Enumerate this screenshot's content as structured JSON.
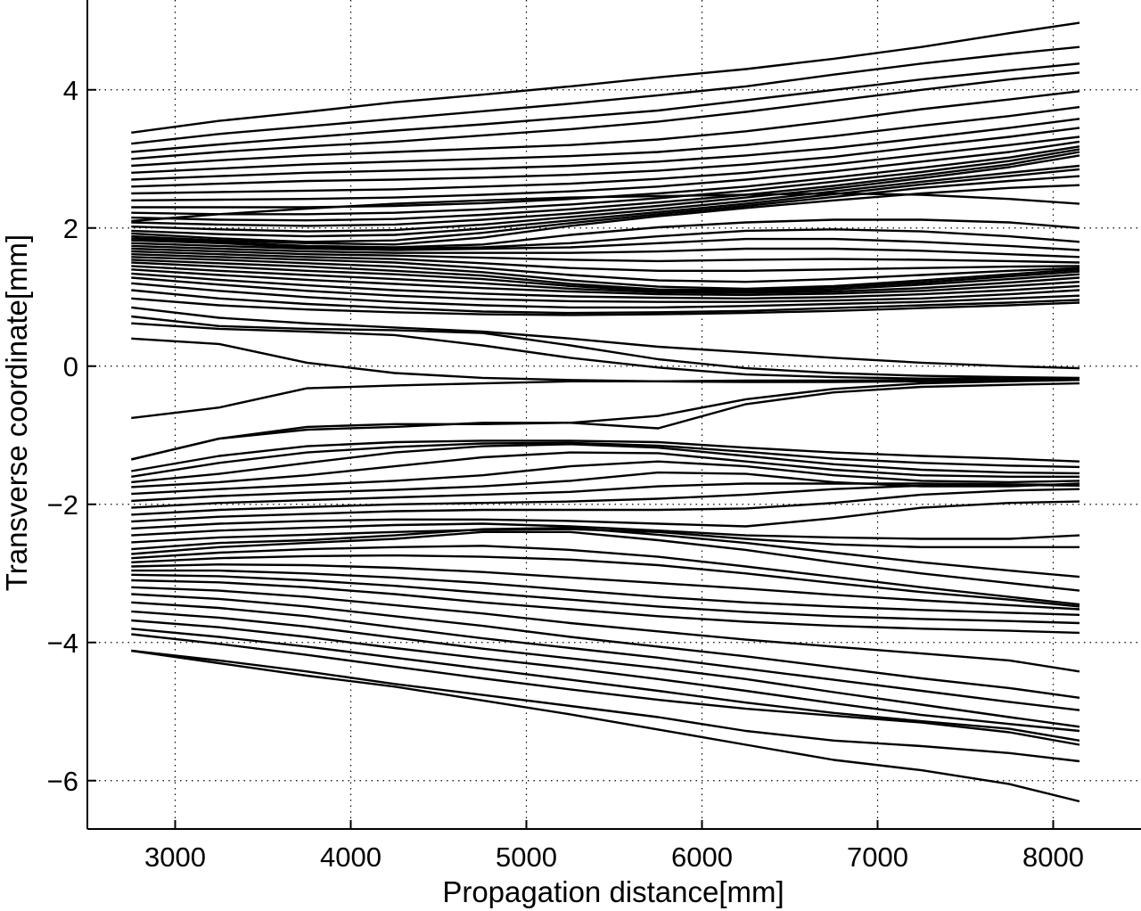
{
  "chart_data": {
    "type": "line",
    "title": "",
    "xlabel": "Propagation distance[mm]",
    "ylabel": "Transverse coordinate[mm]",
    "xlim": [
      2500,
      8500
    ],
    "ylim": [
      -6.7,
      5.3
    ],
    "xticks": [
      3000,
      4000,
      5000,
      6000,
      7000,
      8000
    ],
    "xtick_labels": [
      "3000",
      "4000",
      "5000",
      "6000",
      "7000",
      "8000"
    ],
    "yticks": [
      -6,
      -4,
      -2,
      0,
      2,
      4
    ],
    "ytick_labels": [
      "−6",
      "−4",
      "−2",
      "0",
      "2",
      "4"
    ],
    "grid": "dotted",
    "legend": "none",
    "line_color": "#000000",
    "x": [
      2750,
      3250,
      3750,
      4250,
      4750,
      5250,
      5750,
      6250,
      6750,
      7250,
      7750,
      8150
    ],
    "series": [
      {
        "values": [
          3.38,
          3.55,
          3.68,
          3.82,
          3.93,
          4.05,
          4.18,
          4.3,
          4.45,
          4.62,
          4.82,
          4.97
        ]
      },
      {
        "values": [
          3.22,
          3.36,
          3.47,
          3.58,
          3.69,
          3.8,
          3.92,
          4.05,
          4.22,
          4.38,
          4.52,
          4.62
        ]
      },
      {
        "values": [
          3.1,
          3.21,
          3.31,
          3.41,
          3.5,
          3.6,
          3.7,
          3.85,
          4.0,
          4.15,
          4.28,
          4.38
        ]
      },
      {
        "values": [
          3.0,
          3.1,
          3.18,
          3.25,
          3.34,
          3.43,
          3.54,
          3.68,
          3.84,
          4.0,
          4.15,
          4.25
        ]
      },
      {
        "values": [
          2.9,
          2.98,
          3.05,
          3.1,
          3.15,
          3.2,
          3.28,
          3.4,
          3.55,
          3.72,
          3.86,
          3.98
        ]
      },
      {
        "values": [
          2.8,
          2.86,
          2.92,
          2.96,
          3.0,
          3.04,
          3.1,
          3.2,
          3.33,
          3.48,
          3.62,
          3.75
        ]
      },
      {
        "values": [
          2.7,
          2.75,
          2.8,
          2.83,
          2.86,
          2.9,
          2.96,
          3.05,
          3.16,
          3.3,
          3.45,
          3.58
        ]
      },
      {
        "values": [
          2.6,
          2.64,
          2.68,
          2.7,
          2.73,
          2.77,
          2.83,
          2.92,
          3.03,
          3.18,
          3.32,
          3.45
        ]
      },
      {
        "values": [
          2.5,
          2.52,
          2.54,
          2.56,
          2.6,
          2.64,
          2.71,
          2.8,
          2.92,
          3.06,
          3.2,
          3.32
        ]
      },
      {
        "values": [
          2.4,
          2.41,
          2.42,
          2.44,
          2.48,
          2.53,
          2.6,
          2.7,
          2.82,
          2.96,
          3.1,
          3.25
        ]
      },
      {
        "values": [
          2.3,
          2.3,
          2.3,
          2.32,
          2.36,
          2.42,
          2.5,
          2.6,
          2.73,
          2.87,
          3.02,
          3.18
        ]
      },
      {
        "values": [
          2.22,
          2.2,
          2.2,
          2.22,
          2.27,
          2.34,
          2.43,
          2.54,
          2.67,
          2.81,
          2.97,
          3.14
        ]
      },
      {
        "values": [
          2.15,
          2.12,
          2.11,
          2.13,
          2.19,
          2.27,
          2.37,
          2.48,
          2.61,
          2.76,
          2.92,
          3.1
        ]
      },
      {
        "values": [
          2.08,
          2.05,
          2.03,
          2.05,
          2.12,
          2.21,
          2.32,
          2.44,
          2.57,
          2.72,
          2.88,
          3.05
        ]
      },
      {
        "values": [
          2.02,
          1.98,
          1.95,
          1.97,
          2.05,
          2.16,
          2.27,
          2.39,
          2.53,
          2.67,
          2.8,
          2.9
        ]
      },
      {
        "values": [
          1.96,
          1.91,
          1.88,
          1.9,
          1.99,
          2.11,
          2.23,
          2.35,
          2.49,
          2.63,
          2.75,
          2.85
        ]
      },
      {
        "values": [
          1.92,
          1.85,
          1.8,
          1.82,
          1.93,
          2.07,
          2.2,
          2.32,
          2.45,
          2.58,
          2.68,
          2.75
        ]
      },
      {
        "values": [
          1.88,
          1.82,
          1.78,
          1.76,
          1.86,
          2.03,
          2.17,
          2.29,
          2.4,
          2.5,
          2.58,
          2.62
        ]
      },
      {
        "values": [
          2.1,
          2.2,
          2.28,
          2.35,
          2.4,
          2.44,
          2.46,
          2.48,
          2.5,
          2.48,
          2.42,
          2.35
        ]
      },
      {
        "values": [
          1.85,
          1.8,
          1.74,
          1.72,
          1.76,
          1.9,
          2.01,
          2.08,
          2.12,
          2.12,
          2.08,
          2.0
        ]
      },
      {
        "values": [
          1.82,
          1.78,
          1.72,
          1.7,
          1.72,
          1.78,
          1.88,
          1.96,
          1.98,
          1.95,
          1.88,
          1.8
        ]
      },
      {
        "values": [
          1.78,
          1.74,
          1.7,
          1.68,
          1.7,
          1.72,
          1.78,
          1.84,
          1.84,
          1.8,
          1.74,
          1.68
        ]
      },
      {
        "values": [
          1.74,
          1.7,
          1.66,
          1.64,
          1.64,
          1.64,
          1.66,
          1.7,
          1.7,
          1.67,
          1.62,
          1.58
        ]
      },
      {
        "values": [
          1.7,
          1.66,
          1.62,
          1.6,
          1.57,
          1.54,
          1.52,
          1.54,
          1.55,
          1.54,
          1.52,
          1.5
        ]
      },
      {
        "values": [
          1.66,
          1.62,
          1.58,
          1.55,
          1.49,
          1.42,
          1.38,
          1.38,
          1.4,
          1.42,
          1.44,
          1.45
        ]
      },
      {
        "values": [
          1.62,
          1.58,
          1.54,
          1.5,
          1.42,
          1.32,
          1.24,
          1.22,
          1.26,
          1.32,
          1.38,
          1.42
        ]
      },
      {
        "values": [
          1.58,
          1.54,
          1.49,
          1.44,
          1.36,
          1.24,
          1.15,
          1.12,
          1.16,
          1.24,
          1.33,
          1.4
        ]
      },
      {
        "values": [
          1.54,
          1.49,
          1.44,
          1.38,
          1.31,
          1.19,
          1.11,
          1.1,
          1.14,
          1.21,
          1.3,
          1.37
        ]
      },
      {
        "values": [
          1.5,
          1.44,
          1.38,
          1.33,
          1.26,
          1.16,
          1.09,
          1.08,
          1.11,
          1.18,
          1.26,
          1.33
        ]
      },
      {
        "values": [
          1.45,
          1.38,
          1.32,
          1.26,
          1.2,
          1.12,
          1.07,
          1.06,
          1.08,
          1.13,
          1.21,
          1.28
        ]
      },
      {
        "values": [
          1.4,
          1.32,
          1.25,
          1.19,
          1.13,
          1.08,
          1.04,
          1.03,
          1.05,
          1.09,
          1.16,
          1.22
        ]
      },
      {
        "values": [
          1.34,
          1.25,
          1.17,
          1.1,
          1.05,
          1.01,
          0.99,
          0.98,
          1.0,
          1.04,
          1.1,
          1.16
        ]
      },
      {
        "values": [
          1.28,
          1.18,
          1.09,
          1.02,
          0.97,
          0.94,
          0.93,
          0.93,
          0.95,
          0.98,
          1.04,
          1.1
        ]
      },
      {
        "values": [
          1.2,
          1.09,
          1.0,
          0.93,
          0.88,
          0.85,
          0.85,
          0.87,
          0.9,
          0.93,
          0.98,
          1.02
        ]
      },
      {
        "values": [
          1.1,
          0.98,
          0.9,
          0.84,
          0.79,
          0.77,
          0.78,
          0.8,
          0.84,
          0.88,
          0.92,
          0.96
        ]
      },
      {
        "values": [
          0.98,
          0.88,
          0.82,
          0.78,
          0.75,
          0.74,
          0.75,
          0.77,
          0.8,
          0.84,
          0.88,
          0.92
        ]
      },
      {
        "values": [
          0.85,
          0.7,
          0.62,
          0.56,
          0.5,
          0.4,
          0.28,
          0.2,
          0.12,
          0.05,
          0.0,
          -0.03
        ]
      },
      {
        "values": [
          0.72,
          0.58,
          0.54,
          0.52,
          0.48,
          0.3,
          0.1,
          -0.03,
          -0.1,
          -0.14,
          -0.16,
          -0.17
        ]
      },
      {
        "values": [
          0.62,
          0.54,
          0.5,
          0.45,
          0.3,
          0.12,
          -0.02,
          -0.12,
          -0.16,
          -0.18,
          -0.18,
          -0.18
        ]
      },
      {
        "values": [
          0.4,
          0.32,
          0.05,
          -0.1,
          -0.17,
          -0.2,
          -0.22,
          -0.23,
          -0.23,
          -0.22,
          -0.2,
          -0.18
        ]
      },
      {
        "values": [
          -0.75,
          -0.6,
          -0.32,
          -0.28,
          -0.25,
          -0.22,
          -0.22,
          -0.21,
          -0.21,
          -0.2,
          -0.2,
          -0.2
        ]
      },
      {
        "values": [
          -1.35,
          -1.05,
          -0.92,
          -0.88,
          -0.82,
          -0.82,
          -0.9,
          -0.55,
          -0.38,
          -0.3,
          -0.27,
          -0.25
        ]
      },
      {
        "values": [
          -1.35,
          -1.05,
          -0.88,
          -0.84,
          -0.84,
          -0.82,
          -0.72,
          -0.48,
          -0.33,
          -0.25,
          -0.22,
          -0.2
        ]
      },
      {
        "values": [
          -1.52,
          -1.3,
          -1.16,
          -1.1,
          -1.08,
          -1.08,
          -1.1,
          -1.18,
          -1.25,
          -1.3,
          -1.34,
          -1.38
        ]
      },
      {
        "values": [
          -1.6,
          -1.4,
          -1.25,
          -1.17,
          -1.12,
          -1.11,
          -1.15,
          -1.24,
          -1.34,
          -1.4,
          -1.44,
          -1.46
        ]
      },
      {
        "values": [
          -1.68,
          -1.56,
          -1.4,
          -1.25,
          -1.16,
          -1.13,
          -1.18,
          -1.3,
          -1.42,
          -1.5,
          -1.54,
          -1.55
        ]
      },
      {
        "values": [
          -1.75,
          -1.68,
          -1.58,
          -1.45,
          -1.32,
          -1.25,
          -1.26,
          -1.38,
          -1.5,
          -1.58,
          -1.6,
          -1.6
        ]
      },
      {
        "values": [
          -1.85,
          -1.78,
          -1.72,
          -1.66,
          -1.58,
          -1.45,
          -1.38,
          -1.45,
          -1.58,
          -1.66,
          -1.68,
          -1.66
        ]
      },
      {
        "values": [
          -1.95,
          -1.88,
          -1.83,
          -1.79,
          -1.74,
          -1.66,
          -1.54,
          -1.56,
          -1.68,
          -1.74,
          -1.74,
          -1.7
        ]
      },
      {
        "values": [
          -2.05,
          -1.98,
          -1.94,
          -1.9,
          -1.86,
          -1.82,
          -1.74,
          -1.7,
          -1.7,
          -1.7,
          -1.71,
          -1.72
        ]
      },
      {
        "values": [
          -2.15,
          -2.08,
          -2.04,
          -2.0,
          -1.98,
          -1.96,
          -1.92,
          -1.86,
          -1.78,
          -1.73,
          -1.72,
          -1.73
        ]
      },
      {
        "values": [
          -2.25,
          -2.18,
          -2.14,
          -2.1,
          -2.08,
          -2.08,
          -2.08,
          -2.06,
          -1.98,
          -1.86,
          -1.8,
          -1.78
        ]
      },
      {
        "values": [
          -2.35,
          -2.28,
          -2.24,
          -2.22,
          -2.22,
          -2.24,
          -2.28,
          -2.32,
          -2.2,
          -2.05,
          -1.98,
          -1.96
        ]
      },
      {
        "values": [
          -2.45,
          -2.38,
          -2.34,
          -2.3,
          -2.28,
          -2.32,
          -2.38,
          -2.45,
          -2.48,
          -2.5,
          -2.5,
          -2.45
        ]
      },
      {
        "values": [
          -2.55,
          -2.48,
          -2.44,
          -2.4,
          -2.37,
          -2.36,
          -2.4,
          -2.5,
          -2.58,
          -2.62,
          -2.62,
          -2.62
        ]
      },
      {
        "values": [
          -2.65,
          -2.56,
          -2.52,
          -2.45,
          -2.36,
          -2.34,
          -2.44,
          -2.56,
          -2.7,
          -2.84,
          -2.96,
          -3.05
        ]
      },
      {
        "values": [
          -2.72,
          -2.62,
          -2.56,
          -2.5,
          -2.4,
          -2.4,
          -2.52,
          -2.66,
          -2.84,
          -3.0,
          -3.14,
          -3.25
        ]
      },
      {
        "values": [
          -2.78,
          -2.7,
          -2.65,
          -2.62,
          -2.6,
          -2.66,
          -2.76,
          -2.9,
          -3.05,
          -3.2,
          -3.34,
          -3.45
        ]
      },
      {
        "values": [
          -2.84,
          -2.78,
          -2.75,
          -2.74,
          -2.76,
          -2.8,
          -2.88,
          -3.0,
          -3.14,
          -3.27,
          -3.38,
          -3.48
        ]
      },
      {
        "values": [
          -2.9,
          -2.87,
          -2.88,
          -2.92,
          -2.98,
          -3.06,
          -3.14,
          -3.22,
          -3.31,
          -3.39,
          -3.46,
          -3.52
        ]
      },
      {
        "values": [
          -2.96,
          -2.96,
          -3.0,
          -3.06,
          -3.14,
          -3.24,
          -3.34,
          -3.42,
          -3.48,
          -3.53,
          -3.57,
          -3.6
        ]
      },
      {
        "values": [
          -3.02,
          -3.04,
          -3.1,
          -3.18,
          -3.28,
          -3.38,
          -3.48,
          -3.56,
          -3.62,
          -3.66,
          -3.69,
          -3.72
        ]
      },
      {
        "values": [
          -3.1,
          -3.13,
          -3.2,
          -3.3,
          -3.42,
          -3.52,
          -3.62,
          -3.7,
          -3.76,
          -3.8,
          -3.83,
          -3.86
        ]
      },
      {
        "values": [
          -3.2,
          -3.25,
          -3.34,
          -3.46,
          -3.58,
          -3.72,
          -3.84,
          -3.96,
          -4.06,
          -4.16,
          -4.26,
          -4.42
        ]
      },
      {
        "values": [
          -3.3,
          -3.37,
          -3.48,
          -3.62,
          -3.76,
          -3.92,
          -4.06,
          -4.2,
          -4.36,
          -4.52,
          -4.66,
          -4.8
        ]
      },
      {
        "values": [
          -3.42,
          -3.5,
          -3.62,
          -3.78,
          -3.94,
          -4.08,
          -4.22,
          -4.38,
          -4.54,
          -4.7,
          -4.86,
          -4.98
        ]
      },
      {
        "values": [
          -3.55,
          -3.64,
          -3.77,
          -3.93,
          -4.09,
          -4.23,
          -4.37,
          -4.53,
          -4.72,
          -4.9,
          -5.08,
          -5.22
        ]
      },
      {
        "values": [
          -3.68,
          -3.78,
          -3.92,
          -4.08,
          -4.23,
          -4.37,
          -4.53,
          -4.7,
          -4.88,
          -5.05,
          -5.18,
          -5.28
        ]
      },
      {
        "values": [
          -3.8,
          -3.92,
          -4.06,
          -4.22,
          -4.38,
          -4.54,
          -4.7,
          -4.87,
          -5.02,
          -5.14,
          -5.25,
          -5.42
        ]
      },
      {
        "values": [
          -3.88,
          -4.02,
          -4.18,
          -4.35,
          -4.52,
          -4.68,
          -4.83,
          -4.96,
          -5.06,
          -5.16,
          -5.3,
          -5.48
        ]
      },
      {
        "values": [
          -4.12,
          -4.26,
          -4.42,
          -4.6,
          -4.76,
          -4.92,
          -5.08,
          -5.28,
          -5.42,
          -5.5,
          -5.6,
          -5.72
        ]
      },
      {
        "values": [
          -4.12,
          -4.3,
          -4.48,
          -4.64,
          -4.84,
          -5.04,
          -5.26,
          -5.48,
          -5.7,
          -5.85,
          -6.05,
          -6.3
        ]
      }
    ]
  }
}
